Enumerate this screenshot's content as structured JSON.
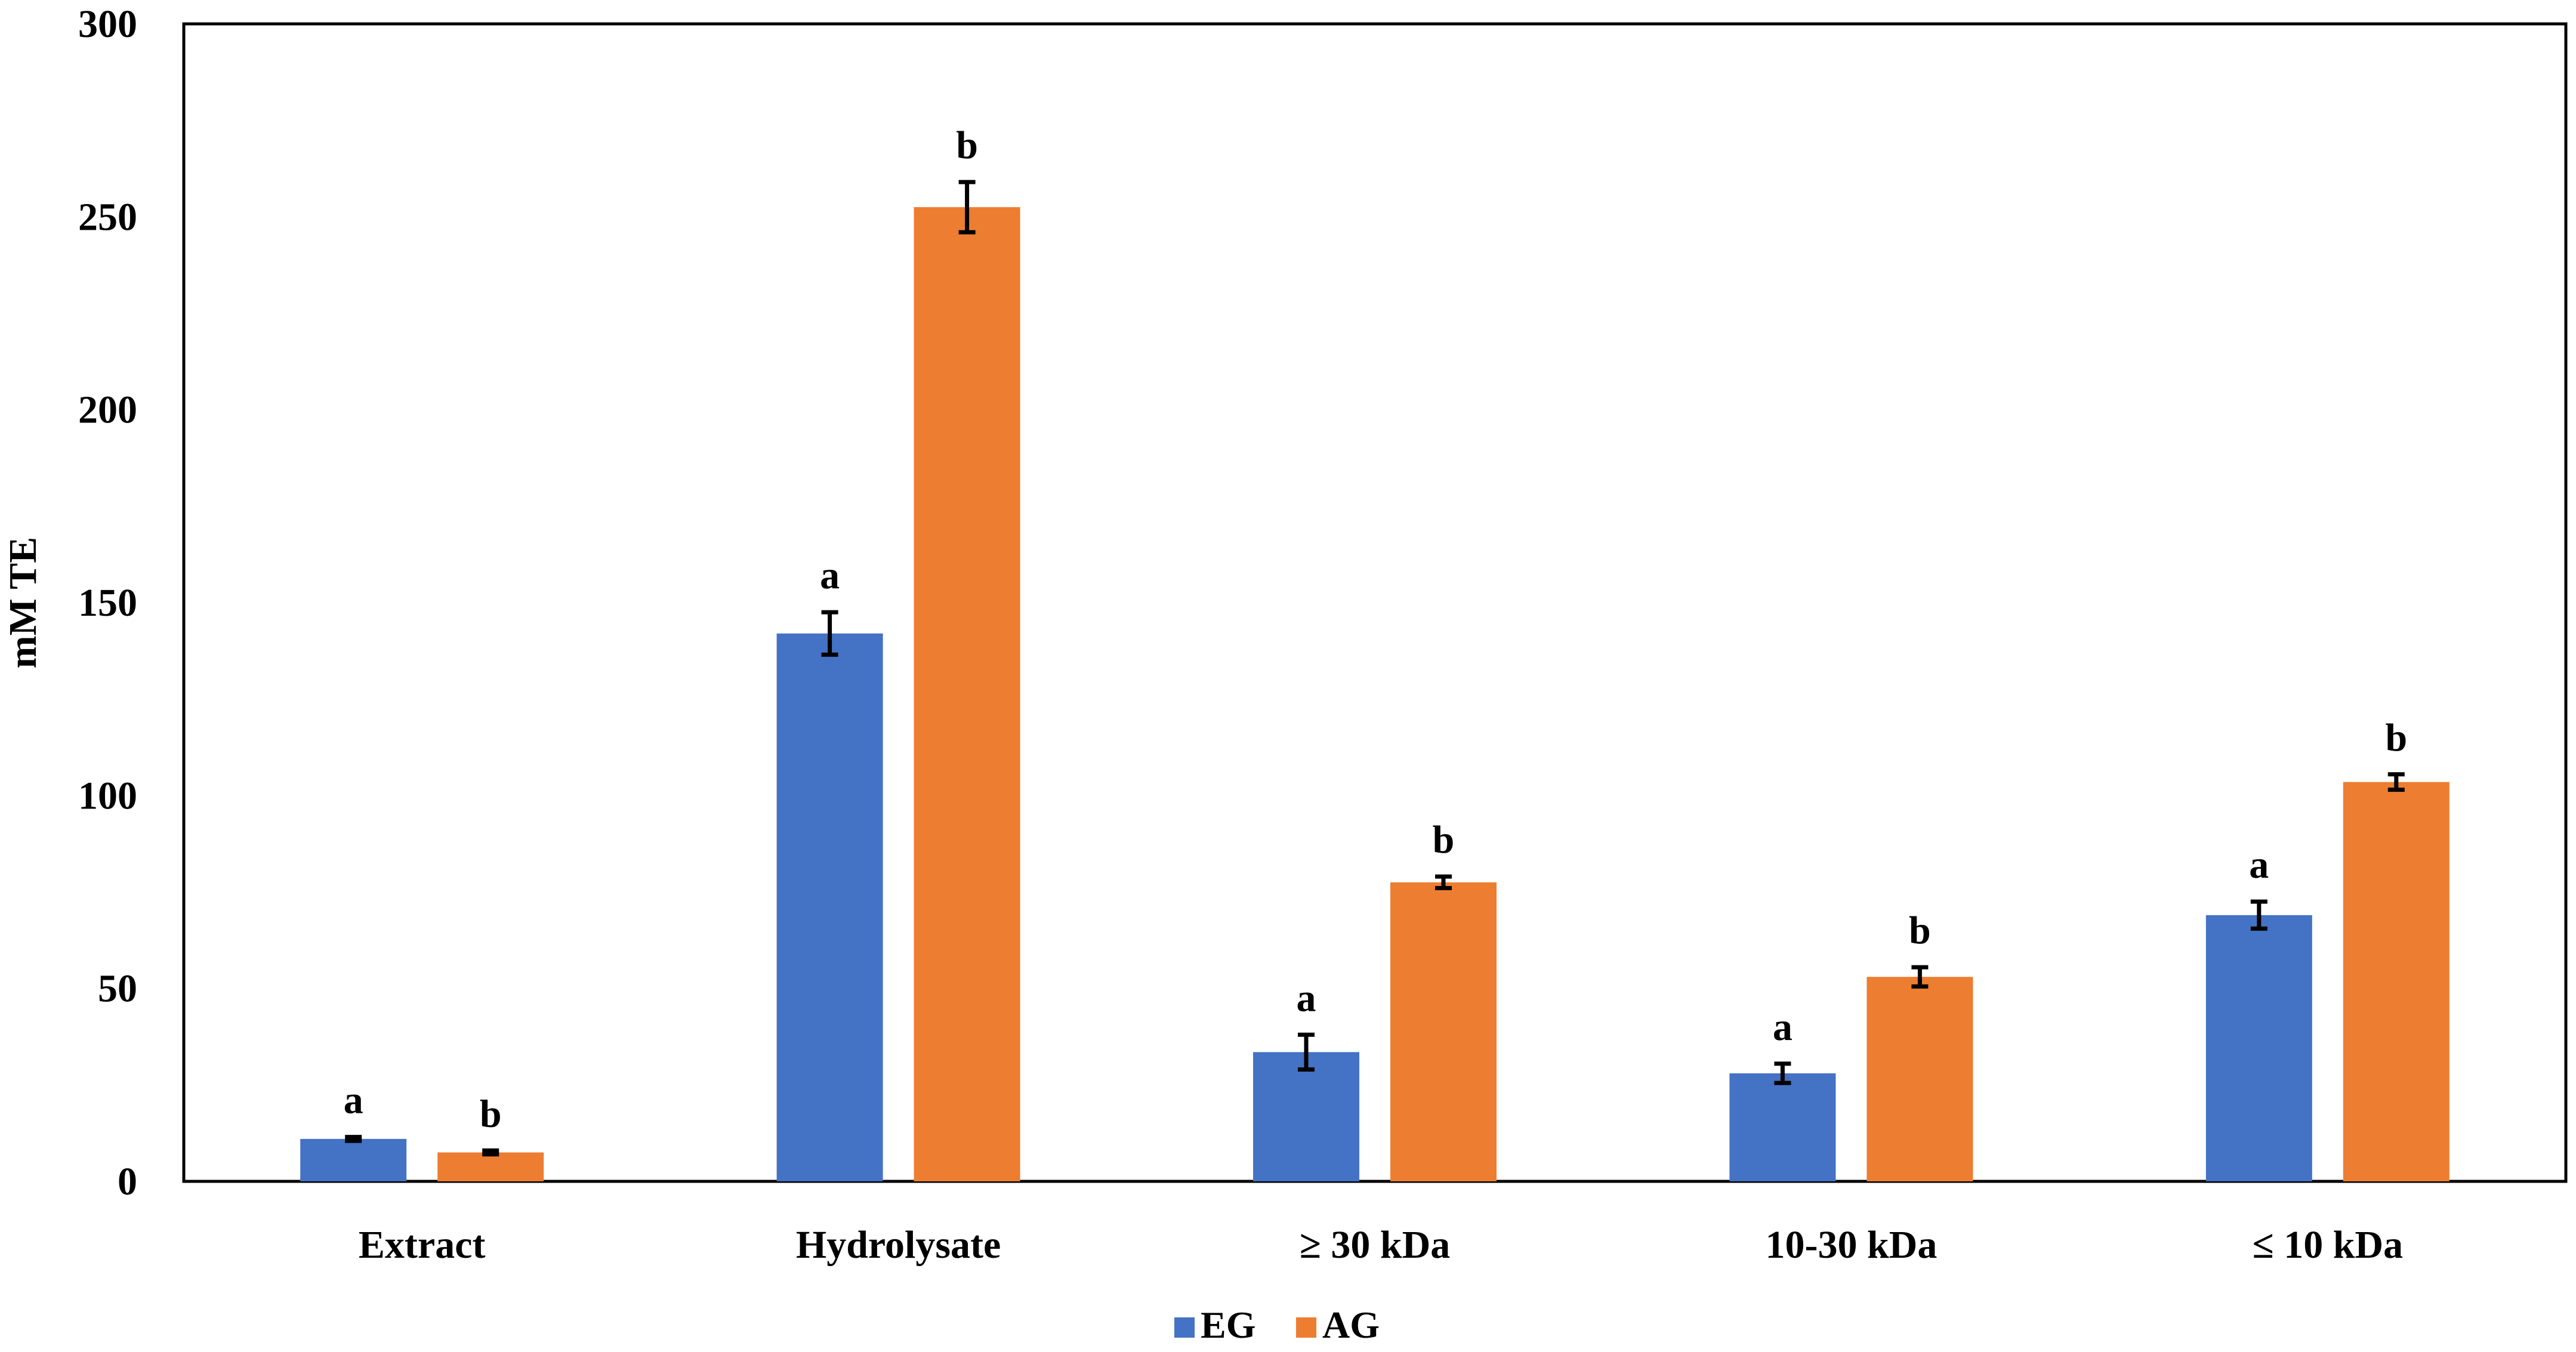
{
  "chart_data": {
    "type": "bar",
    "title": "",
    "xlabel": "",
    "ylabel": "mM TE",
    "ylim": [
      0,
      300
    ],
    "yticks": [
      0,
      50,
      100,
      150,
      200,
      250,
      300
    ],
    "categories": [
      "Extract",
      "Hydrolysate",
      "≥ 30 kDa",
      "10-30 kDa",
      "≤ 10 kDa"
    ],
    "series": [
      {
        "name": "EG",
        "color": "#4472C4",
        "values": [
          11,
          142,
          33.5,
          28,
          69
        ],
        "errors": [
          0.5,
          5.5,
          4.5,
          2.5,
          3.5
        ],
        "labels": [
          "a",
          "a",
          "a",
          "a",
          "a"
        ]
      },
      {
        "name": "AG",
        "color": "#ED7D31",
        "values": [
          7.5,
          252.5,
          77.5,
          53,
          103.5
        ],
        "errors": [
          0.5,
          6.5,
          1.5,
          2.5,
          2
        ],
        "labels": [
          "b",
          "b",
          "b",
          "b",
          "b"
        ]
      }
    ],
    "legend": "bottom-center",
    "grid": false
  }
}
